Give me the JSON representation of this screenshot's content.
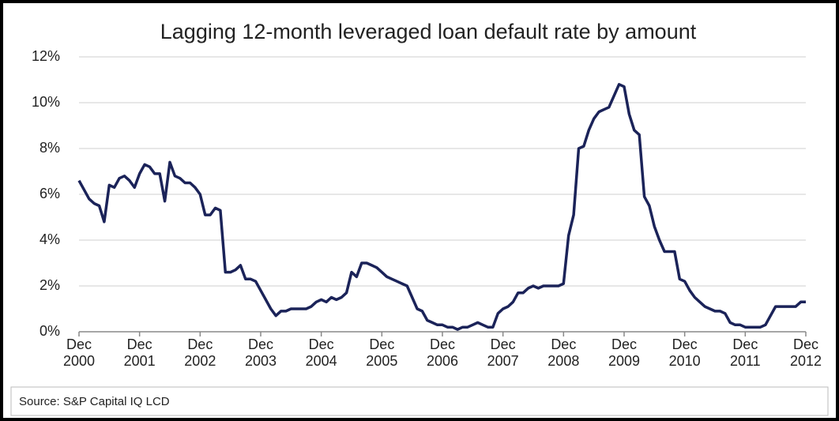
{
  "chart_data": {
    "type": "line",
    "title": "Lagging 12-month leveraged loan default rate by amount",
    "source": "Source: S&P Capital IQ LCD",
    "categories": [
      "Dec 2000",
      null,
      null,
      null,
      null,
      null,
      null,
      null,
      null,
      null,
      null,
      null,
      "Dec 2001",
      null,
      null,
      null,
      null,
      null,
      null,
      null,
      null,
      null,
      null,
      null,
      "Dec 2002",
      null,
      null,
      null,
      null,
      null,
      null,
      null,
      null,
      null,
      null,
      null,
      "Dec 2003",
      null,
      null,
      null,
      null,
      null,
      null,
      null,
      null,
      null,
      null,
      null,
      "Dec 2004",
      null,
      null,
      null,
      null,
      null,
      null,
      null,
      null,
      null,
      null,
      null,
      "Dec 2005",
      null,
      null,
      null,
      null,
      null,
      null,
      null,
      null,
      null,
      null,
      null,
      "Dec 2006",
      null,
      null,
      null,
      null,
      null,
      null,
      null,
      null,
      null,
      null,
      null,
      "Dec 2007",
      null,
      null,
      null,
      null,
      null,
      null,
      null,
      null,
      null,
      null,
      null,
      "Dec 2008",
      null,
      null,
      null,
      null,
      null,
      null,
      null,
      null,
      null,
      null,
      null,
      "Dec 2009",
      null,
      null,
      null,
      null,
      null,
      null,
      null,
      null,
      null,
      null,
      null,
      "Dec 2010",
      null,
      null,
      null,
      null,
      null,
      null,
      null,
      null,
      null,
      null,
      null,
      "Dec 2011",
      null,
      null,
      null,
      null,
      null,
      null,
      null,
      null,
      null,
      null,
      null,
      "Dec 2012"
    ],
    "series": [
      {
        "name": "Default rate",
        "color": "#1b2359",
        "values": [
          6.6,
          6.2,
          5.8,
          5.6,
          5.5,
          4.8,
          6.4,
          6.3,
          6.7,
          6.8,
          6.6,
          6.3,
          6.9,
          7.3,
          7.2,
          6.9,
          6.9,
          5.7,
          7.4,
          6.8,
          6.7,
          6.5,
          6.5,
          6.3,
          6.0,
          5.1,
          5.1,
          5.4,
          5.3,
          2.6,
          2.6,
          2.7,
          2.9,
          2.3,
          2.3,
          2.2,
          1.8,
          1.4,
          1.0,
          0.7,
          0.9,
          0.9,
          1.0,
          1.0,
          1.0,
          1.0,
          1.1,
          1.3,
          1.4,
          1.3,
          1.5,
          1.4,
          1.5,
          1.7,
          2.6,
          2.4,
          3.0,
          3.0,
          2.9,
          2.8,
          2.6,
          2.4,
          2.3,
          2.2,
          2.1,
          2.0,
          1.5,
          1.0,
          0.9,
          0.5,
          0.4,
          0.3,
          0.3,
          0.2,
          0.2,
          0.1,
          0.2,
          0.2,
          0.3,
          0.4,
          0.3,
          0.2,
          0.2,
          0.8,
          1.0,
          1.1,
          1.3,
          1.7,
          1.7,
          1.9,
          2.0,
          1.9,
          2.0,
          2.0,
          2.0,
          2.0,
          2.1,
          4.2,
          5.1,
          8.0,
          8.1,
          8.8,
          9.3,
          9.6,
          9.7,
          9.8,
          10.3,
          10.8,
          10.7,
          9.5,
          8.8,
          8.6,
          5.9,
          5.5,
          4.6,
          4.0,
          3.5,
          3.5,
          3.5,
          2.3,
          2.2,
          1.8,
          1.5,
          1.3,
          1.1,
          1.0,
          0.9,
          0.9,
          0.8,
          0.4,
          0.3,
          0.3,
          0.2,
          0.2,
          0.2,
          0.2,
          0.3,
          0.7,
          1.1,
          1.1,
          1.1,
          1.1,
          1.1,
          1.3,
          1.3
        ]
      }
    ],
    "ylim": [
      0,
      12
    ],
    "yticks": [
      {
        "value": 0,
        "label": "0%"
      },
      {
        "value": 2,
        "label": "2%"
      },
      {
        "value": 4,
        "label": "4%"
      },
      {
        "value": 6,
        "label": "6%"
      },
      {
        "value": 8,
        "label": "8%"
      },
      {
        "value": 10,
        "label": "10%"
      },
      {
        "value": 12,
        "label": "12%"
      }
    ],
    "grid": true
  }
}
